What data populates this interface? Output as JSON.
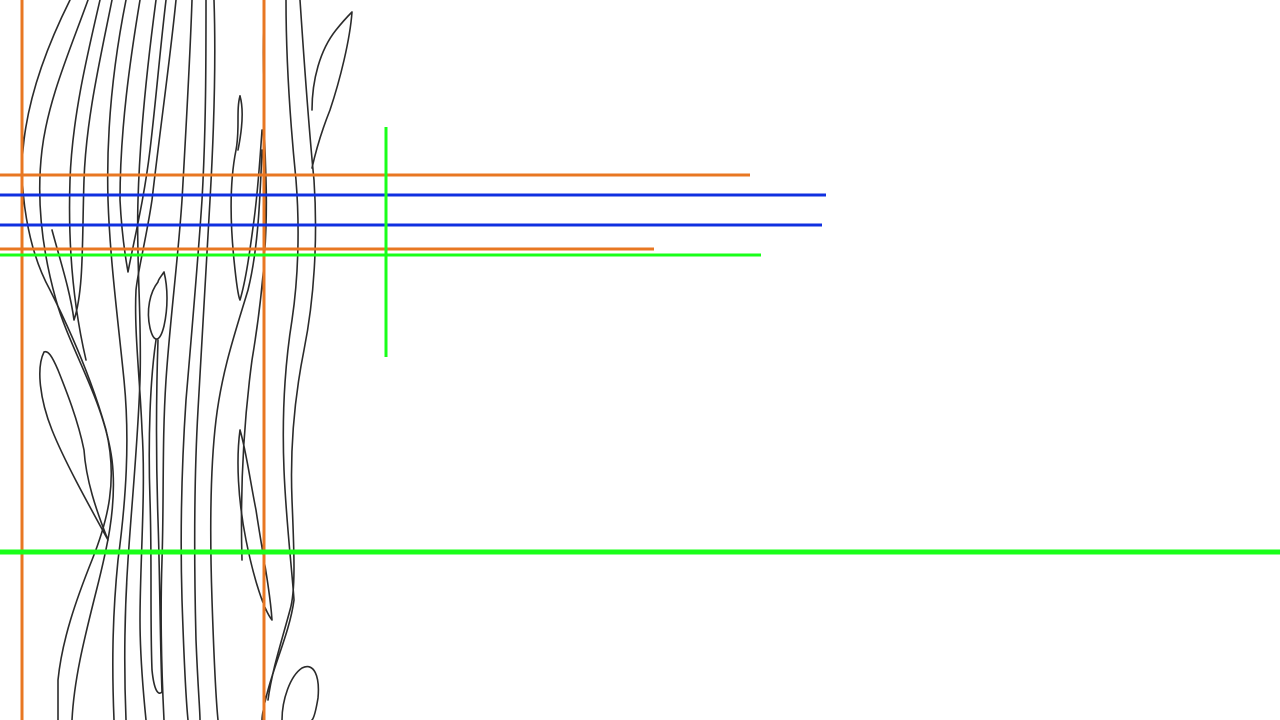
{
  "canvas": {
    "background": "#ffffff"
  },
  "sketch": {
    "subject": "tree-trunk-line-drawing",
    "stroke_color": "#2b2b2b"
  },
  "guides": {
    "colors": {
      "orange": "#e87722",
      "blue": "#1030e0",
      "green": "#19ff19"
    }
  }
}
